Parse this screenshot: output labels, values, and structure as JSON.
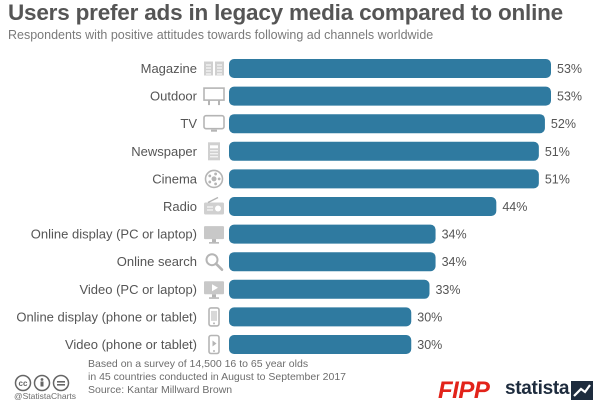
{
  "header": {
    "title": "Users prefer ads in legacy media compared to online",
    "subtitle": "Respondents with positive attitudes towards following ad channels worldwide"
  },
  "chart_data": {
    "type": "bar",
    "orientation": "horizontal",
    "categories": [
      "Magazine",
      "Outdoor",
      "TV",
      "Newspaper",
      "Cinema",
      "Radio",
      "Online display (PC or laptop)",
      "Online search",
      "Video (PC or laptop)",
      "Online display (phone or tablet)",
      "Video (phone or tablet)"
    ],
    "values": [
      53,
      53,
      52,
      51,
      51,
      44,
      34,
      34,
      33,
      30,
      30
    ],
    "value_labels": [
      "53%",
      "53%",
      "52%",
      "51%",
      "51%",
      "44%",
      "34%",
      "34%",
      "33%",
      "30%",
      "30%"
    ],
    "icons": [
      "magazine-icon",
      "billboard-icon",
      "tv-icon",
      "newspaper-icon",
      "film-reel-icon",
      "radio-icon",
      "monitor-icon",
      "magnifier-icon",
      "video-monitor-icon",
      "phone-icon",
      "phone-video-icon"
    ],
    "xlim": [
      0,
      53
    ],
    "bar_color": "#2f7aa0"
  },
  "footer": {
    "note_line1": "Based on a survey of 14,500 16 to 65 year olds",
    "note_line2": "in 45 countries conducted in August to September 2017",
    "source": "Source: Kantar Millward Brown",
    "handle": "@StatistaCharts",
    "brand_fipp": "FIPP",
    "brand_statista": "statista"
  }
}
